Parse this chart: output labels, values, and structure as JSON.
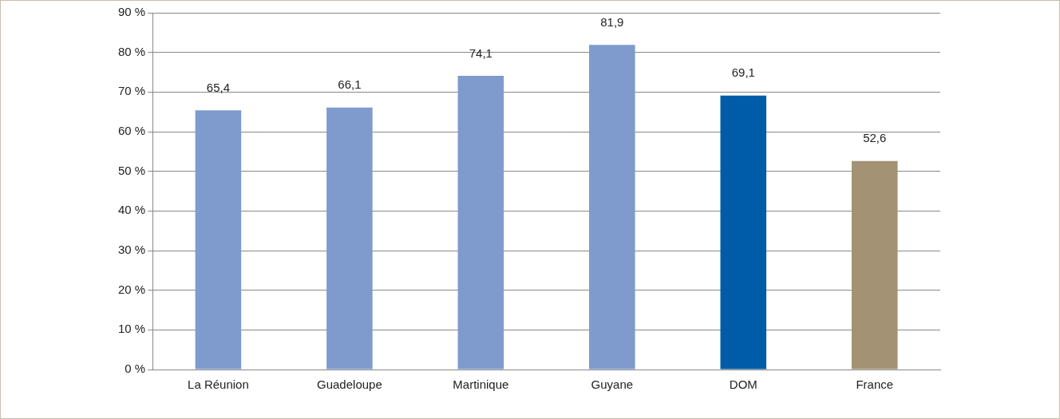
{
  "chart_data": {
    "type": "bar",
    "categories": [
      "La Réunion",
      "Guadeloupe",
      "Martinique",
      "Guyane",
      "DOM",
      "France"
    ],
    "values": [
      65.4,
      66.1,
      74.1,
      81.9,
      69.1,
      52.6
    ],
    "colors": [
      "#7f9acc",
      "#7f9acc",
      "#7f9acc",
      "#7f9acc",
      "#005ca8",
      "#a39274"
    ],
    "value_labels": [
      "65,4",
      "66,1",
      "74,1",
      "81,9",
      "69,1",
      "52,6"
    ],
    "ylim": [
      0,
      90
    ],
    "yticks": [
      {
        "value": 0,
        "label": "0 %"
      },
      {
        "value": 10,
        "label": "10 %"
      },
      {
        "value": 20,
        "label": "20 %"
      },
      {
        "value": 30,
        "label": "30 %"
      },
      {
        "value": 40,
        "label": "40 %"
      },
      {
        "value": 50,
        "label": "50 %"
      },
      {
        "value": 60,
        "label": "60 %"
      },
      {
        "value": 70,
        "label": "70 %"
      },
      {
        "value": 80,
        "label": "80 %"
      },
      {
        "value": 90,
        "label": "90 %"
      }
    ],
    "grid": "y"
  }
}
